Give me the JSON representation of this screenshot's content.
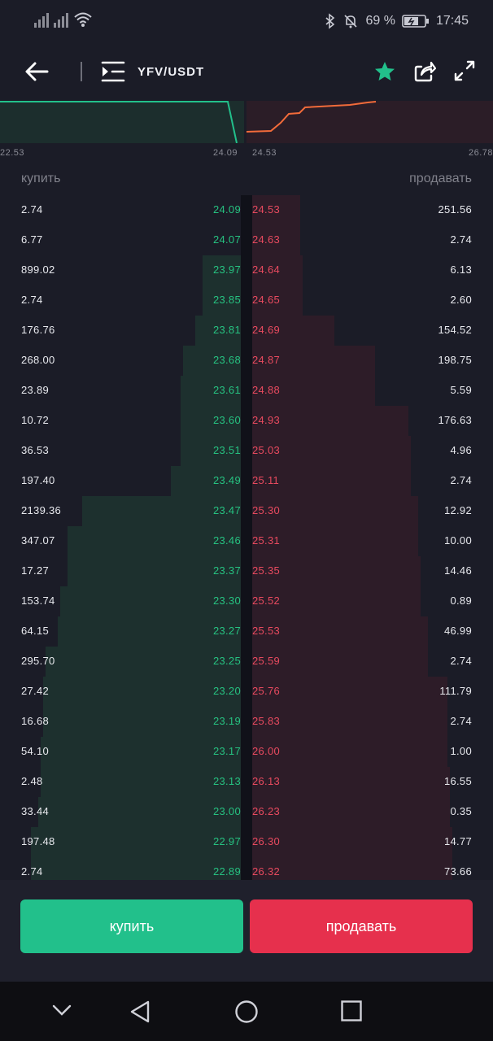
{
  "status": {
    "battery": "69 %",
    "time": "17:45"
  },
  "header": {
    "pair": "YFV/USDT"
  },
  "depth_axis": {
    "left_min": "22.53",
    "left_max": "24.09",
    "right_min": "24.53",
    "right_max": "26.78"
  },
  "columns": {
    "buy": "купить",
    "sell": "продавать"
  },
  "orders": [
    {
      "bq": "2.74",
      "bp": "24.09",
      "sp": "24.53",
      "sq": "251.56",
      "bd": 0.0,
      "sd": 0.2
    },
    {
      "bq": "6.77",
      "bp": "24.07",
      "sp": "24.63",
      "sq": "2.74",
      "bd": 0.0,
      "sd": 0.2
    },
    {
      "bq": "899.02",
      "bp": "23.97",
      "sp": "24.64",
      "sq": "6.13",
      "bd": 0.16,
      "sd": 0.21
    },
    {
      "bq": "2.74",
      "bp": "23.85",
      "sp": "24.65",
      "sq": "2.60",
      "bd": 0.16,
      "sd": 0.21
    },
    {
      "bq": "176.76",
      "bp": "23.81",
      "sp": "24.69",
      "sq": "154.52",
      "bd": 0.19,
      "sd": 0.34
    },
    {
      "bq": "268.00",
      "bp": "23.68",
      "sp": "24.87",
      "sq": "198.75",
      "bd": 0.24,
      "sd": 0.51
    },
    {
      "bq": "23.89",
      "bp": "23.61",
      "sp": "24.88",
      "sq": "5.59",
      "bd": 0.25,
      "sd": 0.51
    },
    {
      "bq": "10.72",
      "bp": "23.60",
      "sp": "24.93",
      "sq": "176.63",
      "bd": 0.25,
      "sd": 0.65
    },
    {
      "bq": "36.53",
      "bp": "23.51",
      "sp": "25.03",
      "sq": "4.96",
      "bd": 0.25,
      "sd": 0.66
    },
    {
      "bq": "197.40",
      "bp": "23.49",
      "sp": "25.11",
      "sq": "2.74",
      "bd": 0.29,
      "sd": 0.66
    },
    {
      "bq": "2139.36",
      "bp": "23.47",
      "sp": "25.30",
      "sq": "12.92",
      "bd": 0.66,
      "sd": 0.69
    },
    {
      "bq": "347.07",
      "bp": "23.46",
      "sp": "25.31",
      "sq": "10.00",
      "bd": 0.72,
      "sd": 0.69
    },
    {
      "bq": "17.27",
      "bp": "23.37",
      "sp": "25.35",
      "sq": "14.46",
      "bd": 0.72,
      "sd": 0.7
    },
    {
      "bq": "153.74",
      "bp": "23.30",
      "sp": "25.52",
      "sq": "0.89",
      "bd": 0.75,
      "sd": 0.7
    },
    {
      "bq": "64.15",
      "bp": "23.27",
      "sp": "25.53",
      "sq": "46.99",
      "bd": 0.76,
      "sd": 0.73
    },
    {
      "bq": "295.70",
      "bp": "23.25",
      "sp": "25.59",
      "sq": "2.74",
      "bd": 0.81,
      "sd": 0.73
    },
    {
      "bq": "27.42",
      "bp": "23.20",
      "sp": "25.76",
      "sq": "111.79",
      "bd": 0.82,
      "sd": 0.81
    },
    {
      "bq": "16.68",
      "bp": "23.19",
      "sp": "25.83",
      "sq": "2.74",
      "bd": 0.82,
      "sd": 0.81
    },
    {
      "bq": "54.10",
      "bp": "23.17",
      "sp": "26.00",
      "sq": "1.00",
      "bd": 0.83,
      "sd": 0.81
    },
    {
      "bq": "2.48",
      "bp": "23.13",
      "sp": "26.13",
      "sq": "16.55",
      "bd": 0.83,
      "sd": 0.82
    },
    {
      "bq": "33.44",
      "bp": "23.00",
      "sp": "26.23",
      "sq": "0.35",
      "bd": 0.84,
      "sd": 0.82
    },
    {
      "bq": "197.48",
      "bp": "22.97",
      "sp": "26.30",
      "sq": "14.77",
      "bd": 0.87,
      "sd": 0.83
    },
    {
      "bq": "2.74",
      "bp": "22.89",
      "sp": "26.32",
      "sq": "73.66",
      "bd": 0.87,
      "sd": 0.83
    }
  ],
  "buttons": {
    "buy": "купить",
    "sell": "продавать"
  },
  "colors": {
    "buy": "#22c08b",
    "sell": "#e6304d",
    "background": "#1b1c27"
  }
}
